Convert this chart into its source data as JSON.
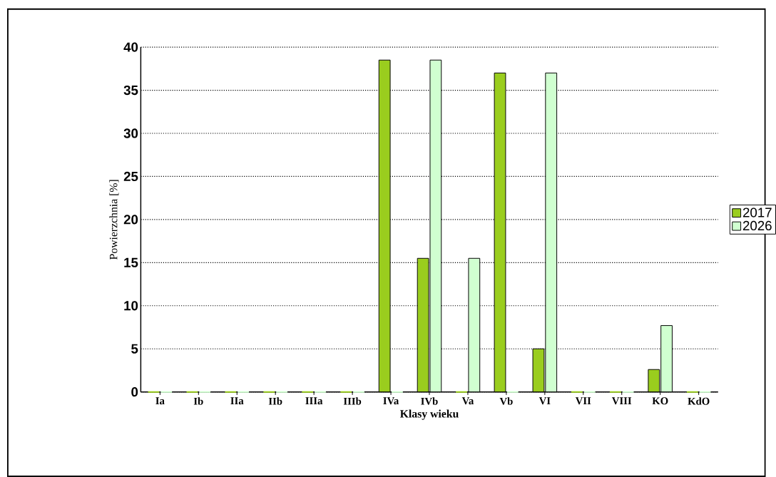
{
  "chart_data": {
    "type": "bar",
    "xlabel": "Klasy wieku",
    "ylabel": "Powierzchnia [%]",
    "categories": [
      "Ia",
      "Ib",
      "IIa",
      "IIb",
      "IIIa",
      "IIIb",
      "IVa",
      "IVb",
      "Va",
      "Vb",
      "VI",
      "VII",
      "VIII",
      "KO",
      "KdO"
    ],
    "series": [
      {
        "name": "2017",
        "color": "#9acd1e",
        "values": [
          0,
          0,
          0,
          0,
          0,
          0,
          38.5,
          15.5,
          0,
          37,
          5,
          0,
          0,
          2.6,
          0
        ]
      },
      {
        "name": "2026",
        "color": "#d0ffd0",
        "values": [
          0,
          0,
          0,
          0,
          0,
          0,
          0,
          38.5,
          15.5,
          0,
          37,
          0,
          0,
          7.7,
          0
        ]
      }
    ],
    "ylim": [
      0,
      40
    ],
    "yticks": [
      0,
      5,
      10,
      15,
      20,
      25,
      30,
      35,
      40
    ],
    "grid": "y",
    "legend": "right"
  }
}
